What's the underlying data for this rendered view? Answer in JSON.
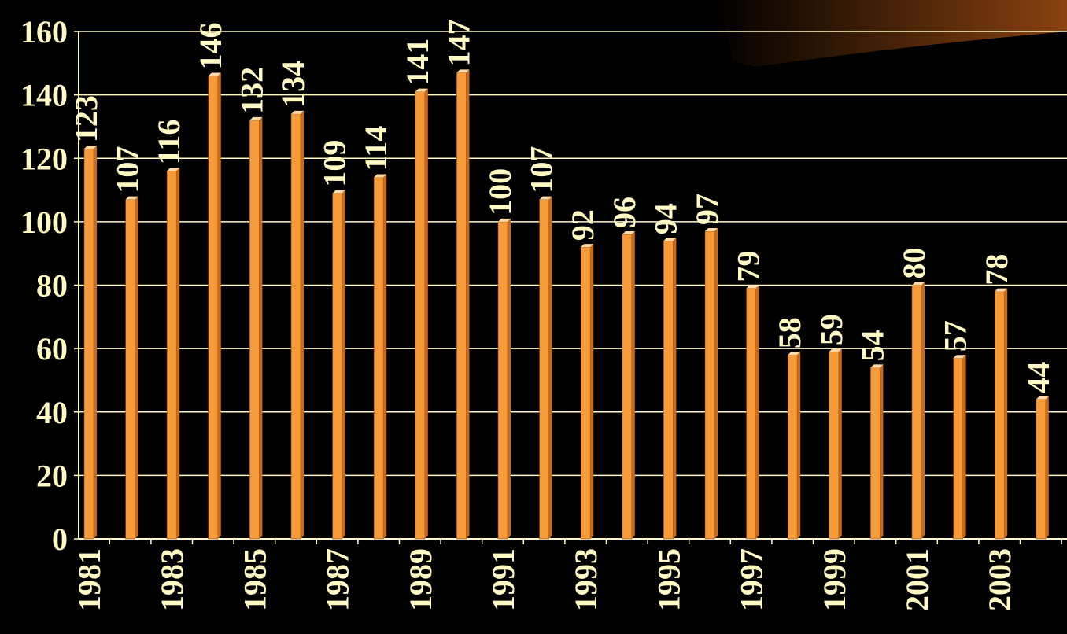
{
  "chart_data": {
    "type": "bar",
    "title": "",
    "xlabel": "",
    "ylabel": "",
    "ylim": [
      0,
      160
    ],
    "yticks": [
      0,
      20,
      40,
      60,
      80,
      100,
      120,
      140,
      160
    ],
    "grid": true,
    "legend": "none",
    "categories": [
      "1981",
      "1982",
      "1983",
      "1984",
      "1985",
      "1986",
      "1987",
      "1988",
      "1989",
      "1990",
      "1991",
      "1992",
      "1993",
      "1994",
      "1995",
      "1996",
      "1997",
      "1998",
      "1999",
      "2000",
      "2001",
      "2002",
      "2003",
      "2004"
    ],
    "x_tick_labels": [
      "1981",
      "",
      "1983",
      "",
      "1985",
      "",
      "1987",
      "",
      "1989",
      "",
      "1991",
      "",
      "1993",
      "",
      "1995",
      "",
      "1997",
      "",
      "1999",
      "",
      "2001",
      "",
      "2003",
      ""
    ],
    "values": [
      123,
      107,
      116,
      146,
      132,
      134,
      109,
      114,
      141,
      147,
      100,
      107,
      92,
      96,
      94,
      97,
      79,
      58,
      59,
      54,
      80,
      57,
      78,
      44
    ]
  },
  "colors": {
    "background": "#000000",
    "bar_front": "#F79A3A",
    "bar_side": "#C86A18",
    "bar_top": "#FFD9A8",
    "text": "#FFF9C4",
    "grid": "#FFF9C4",
    "decoration": "#7A3A0A"
  }
}
